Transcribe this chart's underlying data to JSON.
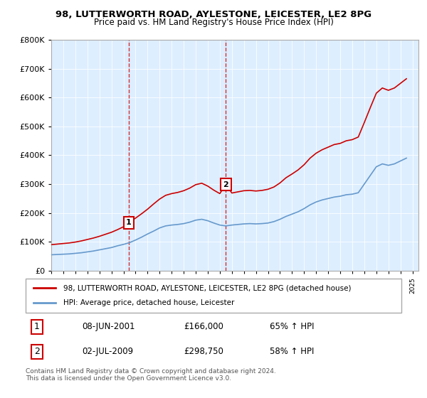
{
  "title1": "98, LUTTERWORTH ROAD, AYLESTONE, LEICESTER, LE2 8PG",
  "title2": "Price paid vs. HM Land Registry's House Price Index (HPI)",
  "legend_line1": "98, LUTTERWORTH ROAD, AYLESTONE, LEICESTER, LE2 8PG (detached house)",
  "legend_line2": "HPI: Average price, detached house, Leicester",
  "sale1_date": "08-JUN-2001",
  "sale1_price": 166000,
  "sale1_pct": "65% ↑ HPI",
  "sale2_date": "02-JUL-2009",
  "sale2_price": 298750,
  "sale2_pct": "58% ↑ HPI",
  "footnote": "Contains HM Land Registry data © Crown copyright and database right 2024.\nThis data is licensed under the Open Government Licence v3.0.",
  "sale1_year": 2001.44,
  "sale2_year": 2009.5,
  "red_color": "#cc0000",
  "blue_color": "#6699cc",
  "bg_color": "#ddeeff",
  "ylim": [
    0,
    800000
  ],
  "xlim": [
    1995,
    2025.5
  ],
  "yticks": [
    0,
    100000,
    200000,
    300000,
    400000,
    500000,
    600000,
    700000,
    800000
  ],
  "ytick_labels": [
    "£0",
    "£100K",
    "£200K",
    "£300K",
    "£400K",
    "£500K",
    "£600K",
    "£700K",
    "£800K"
  ],
  "hpi_x": [
    1995,
    1995.5,
    1996,
    1996.5,
    1997,
    1997.5,
    1998,
    1998.5,
    1999,
    1999.5,
    2000,
    2000.5,
    2001,
    2001.5,
    2002,
    2002.5,
    2003,
    2003.5,
    2004,
    2004.5,
    2005,
    2005.5,
    2006,
    2006.5,
    2007,
    2007.5,
    2008,
    2008.5,
    2009,
    2009.5,
    2010,
    2010.5,
    2011,
    2011.5,
    2012,
    2012.5,
    2013,
    2013.5,
    2014,
    2014.5,
    2015,
    2015.5,
    2016,
    2016.5,
    2017,
    2017.5,
    2018,
    2018.5,
    2019,
    2019.5,
    2020,
    2020.5,
    2021,
    2021.5,
    2022,
    2022.5,
    2023,
    2023.5,
    2024,
    2024.5
  ],
  "hpi_y": [
    55000,
    56000,
    57000,
    58000,
    60000,
    62000,
    65000,
    68000,
    72000,
    76000,
    80000,
    86000,
    91000,
    97000,
    106000,
    116000,
    127000,
    137000,
    148000,
    155000,
    158000,
    160000,
    163000,
    168000,
    175000,
    178000,
    173000,
    165000,
    158000,
    155000,
    158000,
    160000,
    162000,
    163000,
    162000,
    163000,
    165000,
    170000,
    178000,
    188000,
    196000,
    204000,
    215000,
    228000,
    238000,
    245000,
    250000,
    255000,
    258000,
    263000,
    265000,
    270000,
    300000,
    330000,
    360000,
    370000,
    365000,
    370000,
    380000,
    390000
  ],
  "red_x": [
    1995,
    1995.5,
    1996,
    1996.5,
    1997,
    1997.5,
    1998,
    1998.5,
    1999,
    1999.5,
    2000,
    2000.5,
    2001,
    2001.44,
    2001.44,
    2002,
    2002.5,
    2003,
    2003.5,
    2004,
    2004.5,
    2005,
    2005.5,
    2006,
    2006.5,
    2007,
    2007.5,
    2008,
    2008.5,
    2009,
    2009.5,
    2009.5,
    2010,
    2010.5,
    2011,
    2011.5,
    2012,
    2012.5,
    2013,
    2013.5,
    2014,
    2014.5,
    2015,
    2015.5,
    2016,
    2016.5,
    2017,
    2017.5,
    2018,
    2018.5,
    2019,
    2019.5,
    2020,
    2020.5,
    2021,
    2021.5,
    2022,
    2022.5,
    2023,
    2023.5,
    2024,
    2024.5
  ],
  "red_y": [
    90000,
    92000,
    94000,
    96000,
    99000,
    103000,
    108000,
    113000,
    119000,
    126000,
    133000,
    142000,
    152000,
    166000,
    166000,
    182000,
    197000,
    213000,
    231000,
    248000,
    261000,
    267000,
    271000,
    277000,
    286000,
    298000,
    303000,
    293000,
    279000,
    267000,
    298750,
    298750,
    269000,
    273000,
    277000,
    278000,
    276000,
    278000,
    282000,
    290000,
    304000,
    322000,
    335000,
    349000,
    367000,
    390000,
    407000,
    419000,
    428000,
    437000,
    441000,
    450000,
    454000,
    463000,
    513000,
    565000,
    615000,
    633000,
    625000,
    633000,
    649000,
    665000
  ]
}
